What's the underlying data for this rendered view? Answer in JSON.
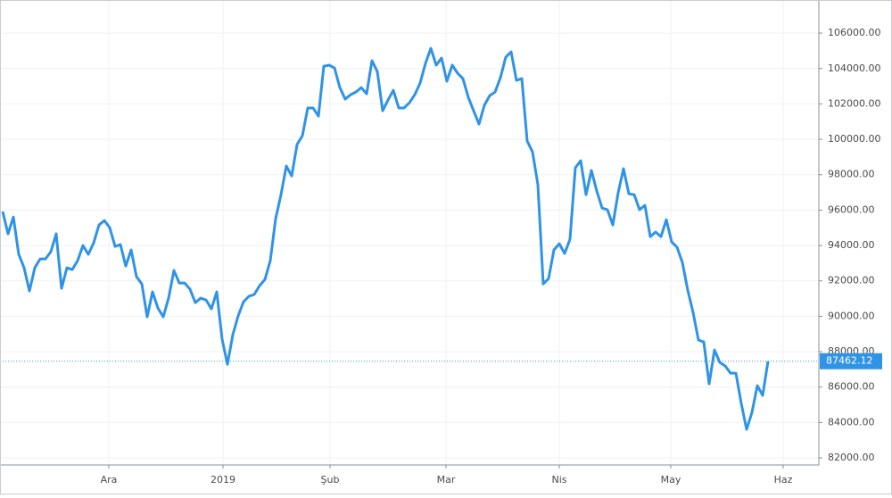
{
  "chart_data": {
    "type": "line",
    "color": "#2f93e6",
    "grid": true,
    "values": [
      95920,
      94660,
      95610,
      93500,
      92740,
      91430,
      92740,
      93240,
      93240,
      93650,
      94660,
      91580,
      92740,
      92640,
      93140,
      94000,
      93500,
      94150,
      95160,
      95410,
      95010,
      93950,
      94050,
      92840,
      93750,
      92240,
      91830,
      89970,
      91380,
      90470,
      89970,
      91030,
      92590,
      91880,
      91880,
      91530,
      90770,
      91030,
      90920,
      90420,
      91380,
      88710,
      87290,
      88960,
      90020,
      90820,
      91130,
      91230,
      91730,
      92080,
      93140,
      95510,
      96870,
      98490,
      97930,
      99700,
      100200,
      101770,
      101770,
      101310,
      104130,
      104190,
      104030,
      102920,
      102270,
      102520,
      102670,
      102920,
      102570,
      104440,
      103830,
      101610,
      102220,
      102770,
      101770,
      101770,
      102070,
      102520,
      103180,
      104290,
      105140,
      104190,
      104590,
      103280,
      104190,
      103730,
      103430,
      102370,
      101610,
      100860,
      101920,
      102470,
      102670,
      103480,
      104640,
      104940,
      103330,
      103430,
      99900,
      99290,
      97430,
      91830,
      92130,
      93750,
      94100,
      93550,
      94350,
      98390,
      98790,
      96870,
      98240,
      97080,
      96120,
      96020,
      95160,
      96980,
      98340,
      96920,
      96870,
      96020,
      96270,
      94500,
      94760,
      94500,
      95460,
      94200,
      93900,
      93040,
      91480,
      90220,
      88660,
      88550,
      86180,
      88100,
      87390,
      87190,
      86790,
      86790,
      85080,
      83610,
      84570,
      86080,
      85530,
      87462.12
    ],
    "xlim": [
      -0.5,
      152.5
    ],
    "xticks": [
      {
        "value": 19.83,
        "label": "Ara"
      },
      {
        "value": 41.17,
        "label": "2019"
      },
      {
        "value": 61.17,
        "label": "Şub"
      },
      {
        "value": 82.83,
        "label": "Mar"
      },
      {
        "value": 104,
        "label": "Nis"
      },
      {
        "value": 124.83,
        "label": "May"
      },
      {
        "value": 145.83,
        "label": "Haz"
      }
    ],
    "ylim": [
      81600,
      107870
    ],
    "yticks": [
      {
        "value": 82000,
        "label": "82000.00"
      },
      {
        "value": 84000,
        "label": "84000.00"
      },
      {
        "value": 86000,
        "label": "86000.00"
      },
      {
        "value": 88000,
        "label": "88000.00"
      },
      {
        "value": 90000,
        "label": "90000.00"
      },
      {
        "value": 92000,
        "label": "92000.00"
      },
      {
        "value": 94000,
        "label": "94000.00"
      },
      {
        "value": 96000,
        "label": "96000.00"
      },
      {
        "value": 98000,
        "label": "98000.00"
      },
      {
        "value": 100000,
        "label": "100000.00"
      },
      {
        "value": 102000,
        "label": "102000.00"
      },
      {
        "value": 104000,
        "label": "104000.00"
      },
      {
        "value": 106000,
        "label": "106000.00"
      }
    ]
  }
}
